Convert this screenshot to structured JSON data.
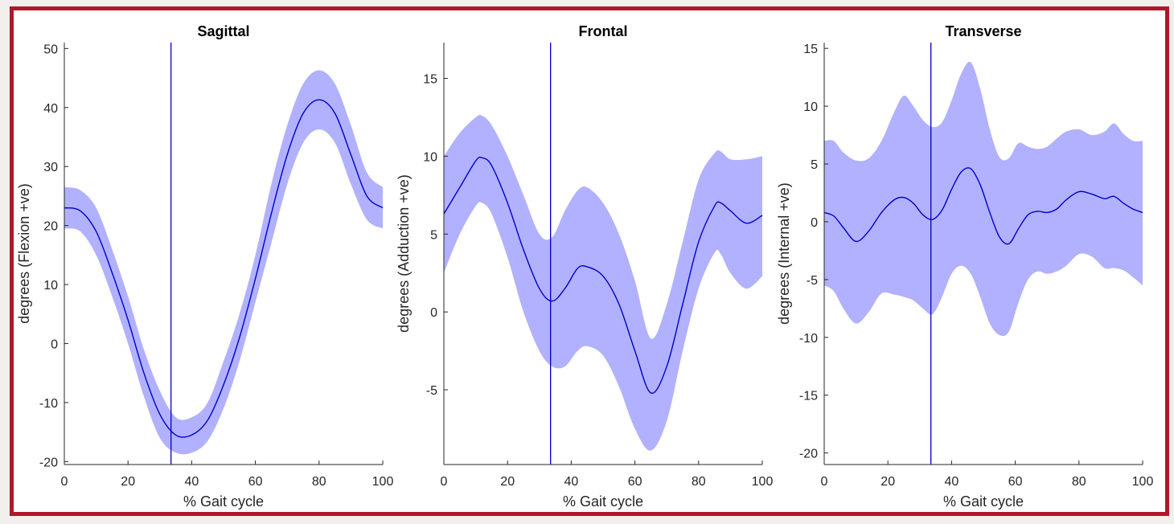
{
  "figure": {
    "frame_color": "#b0182a",
    "line_color": "#0000cc",
    "band_color": "#b1b1ff",
    "marker_x": 33.5
  },
  "chart_data": [
    {
      "type": "area",
      "title": "Sagittal",
      "xlabel": "% Gait cycle",
      "ylabel": "degrees (Flexion +ve)",
      "xlim": [
        0,
        100
      ],
      "ylim": [
        -20.5,
        51
      ],
      "xticks": [
        0,
        20,
        40,
        60,
        80,
        100
      ],
      "yticks": [
        -20,
        -10,
        0,
        10,
        20,
        30,
        40,
        50
      ],
      "grid": false,
      "vertical_line_x": 33.5,
      "series": [
        {
          "x": [
            0,
            5,
            10,
            15,
            20,
            25,
            30,
            35,
            40,
            45,
            50,
            55,
            60,
            65,
            70,
            75,
            80,
            85,
            90,
            95,
            100
          ],
          "mean": [
            23,
            22.5,
            19,
            12,
            4,
            -5,
            -12,
            -15.5,
            -15.5,
            -13,
            -7,
            1,
            11,
            22,
            32,
            39,
            41.3,
            39,
            32,
            25,
            23
          ],
          "lower": [
            19.5,
            19,
            15,
            8,
            0,
            -9,
            -16,
            -18.5,
            -18.5,
            -16.5,
            -11,
            -3,
            7,
            17,
            27,
            34,
            36.3,
            34,
            27,
            21,
            19.5
          ],
          "upper": [
            26.5,
            26,
            23,
            16,
            8,
            -1,
            -8,
            -12.5,
            -12.5,
            -10,
            -3,
            5,
            15,
            27,
            37,
            44,
            46.3,
            44,
            37,
            29,
            26.5
          ]
        }
      ]
    },
    {
      "type": "area",
      "title": "Frontal",
      "xlabel": "% Gait cycle",
      "ylabel": "degrees (Adduction +ve)",
      "xlim": [
        0,
        100
      ],
      "ylim": [
        -9.8,
        17.3
      ],
      "xticks": [
        0,
        20,
        40,
        60,
        80,
        100
      ],
      "yticks": [
        -5,
        0,
        5,
        10,
        15
      ],
      "grid": false,
      "vertical_line_x": 33.5,
      "series": [
        {
          "x": [
            0,
            5,
            10,
            12,
            15,
            20,
            25,
            30,
            34,
            38,
            42,
            45,
            50,
            55,
            60,
            65,
            70,
            75,
            80,
            85,
            87,
            90,
            95,
            100
          ],
          "mean": [
            6.3,
            8.0,
            9.7,
            9.9,
            9.4,
            7.0,
            4.0,
            1.5,
            0.7,
            1.5,
            2.8,
            2.9,
            2.3,
            0.5,
            -2.5,
            -5.2,
            -3.5,
            0.5,
            4.5,
            6.8,
            7.0,
            6.5,
            5.7,
            6.2
          ],
          "lower": [
            2.5,
            5.0,
            6.8,
            7.0,
            6.3,
            3.5,
            0.0,
            -2.5,
            -3.5,
            -3.5,
            -2.5,
            -2.2,
            -2.8,
            -4.8,
            -7.5,
            -8.9,
            -7.0,
            -2.5,
            1.5,
            3.8,
            3.7,
            2.5,
            1.5,
            2.3
          ],
          "upper": [
            10.0,
            11.5,
            12.5,
            12.6,
            12.0,
            10.0,
            7.5,
            5.0,
            4.8,
            6.5,
            7.8,
            8.0,
            7.0,
            5.0,
            2.0,
            -1.7,
            0.5,
            4.5,
            8.5,
            10.2,
            10.3,
            9.8,
            9.8,
            10.0
          ]
        }
      ]
    },
    {
      "type": "area",
      "title": "Transverse",
      "xlabel": "% Gait cycle",
      "ylabel": "degrees (Internal +ve)",
      "xlim": [
        0,
        100
      ],
      "ylim": [
        -21,
        15.5
      ],
      "xticks": [
        0,
        20,
        40,
        60,
        80,
        100
      ],
      "yticks": [
        -20,
        -15,
        -10,
        -5,
        0,
        5,
        10,
        15
      ],
      "grid": false,
      "vertical_line_x": 33.5,
      "series": [
        {
          "x": [
            0,
            3,
            6,
            10,
            14,
            18,
            22,
            25,
            28,
            31,
            34,
            37,
            40,
            43,
            46,
            49,
            52,
            55,
            58,
            61,
            64,
            67,
            70,
            73,
            76,
            80,
            84,
            88,
            91,
            94,
            97,
            100
          ],
          "mean": [
            0.8,
            0.5,
            -0.5,
            -1.7,
            -0.8,
            0.8,
            1.9,
            2.1,
            1.6,
            0.6,
            0.2,
            1.0,
            2.8,
            4.3,
            4.6,
            3.2,
            0.8,
            -1.3,
            -1.9,
            -0.6,
            0.6,
            0.9,
            0.8,
            1.1,
            1.9,
            2.6,
            2.4,
            2.0,
            2.2,
            1.6,
            1.1,
            0.8
          ],
          "lower": [
            -5.5,
            -6.0,
            -7.5,
            -8.8,
            -7.8,
            -6.2,
            -6.3,
            -6.5,
            -6.8,
            -7.5,
            -8.0,
            -6.5,
            -4.5,
            -3.8,
            -4.5,
            -6.5,
            -8.8,
            -9.8,
            -9.5,
            -7.0,
            -5.0,
            -4.3,
            -4.5,
            -4.3,
            -3.8,
            -2.8,
            -3.0,
            -4.0,
            -4.0,
            -4.2,
            -4.8,
            -5.5
          ],
          "upper": [
            7.0,
            7.0,
            6.0,
            5.3,
            5.5,
            7.0,
            9.5,
            10.9,
            10.0,
            8.8,
            8.2,
            8.6,
            10.5,
            12.8,
            13.8,
            11.5,
            8.0,
            5.6,
            5.5,
            6.8,
            6.5,
            6.3,
            6.5,
            7.2,
            7.8,
            8.0,
            7.5,
            7.8,
            8.5,
            7.6,
            7.0,
            7.0
          ]
        }
      ]
    }
  ]
}
